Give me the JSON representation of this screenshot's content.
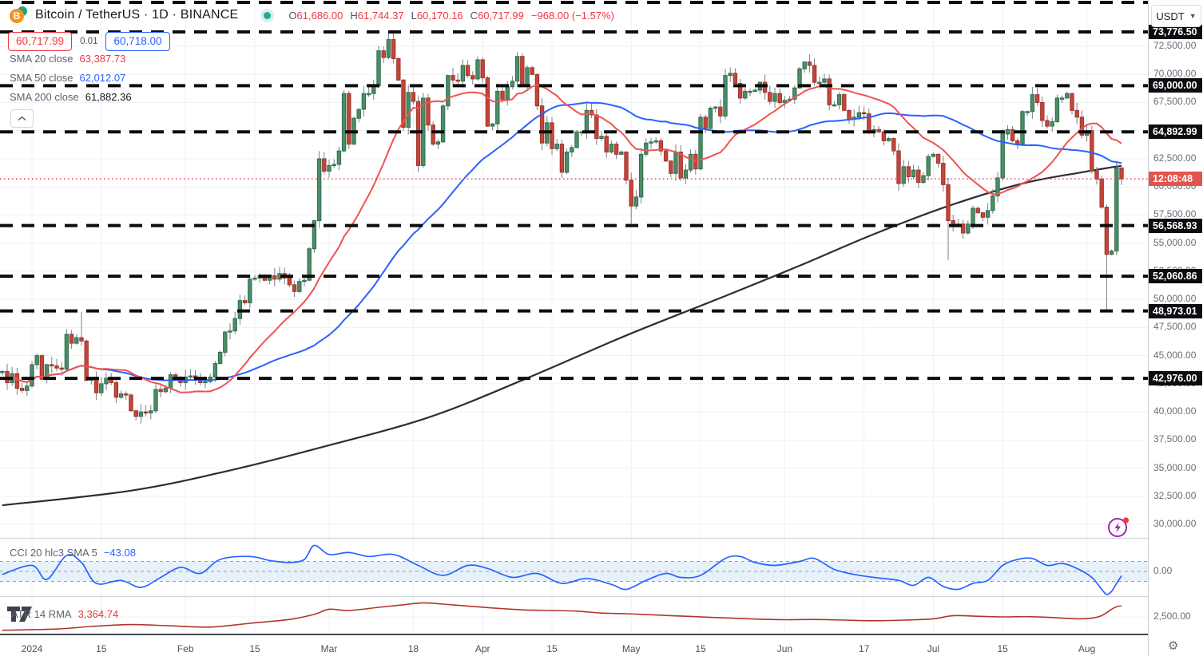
{
  "colors": {
    "up_fill": "#4c8c67",
    "up_border": "#2f6e4f",
    "down_fill": "#c4453a",
    "down_border": "#9e342c",
    "wick": "#7b7f88",
    "sma20": "#ef5350",
    "sma50": "#2962ff",
    "sma200": "#2a2e39",
    "level": "#0c0c0c",
    "current_price_line": "#f23645",
    "cci_line": "#2962ff",
    "cci_band_fill": "#e7f1fa",
    "cci_band_edge": "#9a9eab",
    "atr_line": "#b2352b",
    "grid": "#eef1f6",
    "separator": "#d6d9e0",
    "badge_bg": "#0c0d10",
    "timer_bg": "#e0564f",
    "accent_purple": "#9c27b0"
  },
  "header": {
    "symbol_title": "Bitcoin / TetherUS · 1D · BINANCE",
    "market_status": "open",
    "ohlc": {
      "o_label": "O",
      "o_value": "61,686.00",
      "h_label": "H",
      "h_value": "61,744.37",
      "l_label": "L",
      "l_value": "60,170.16",
      "c_label": "C",
      "c_value": "60,717.99",
      "change": "−968.00 (−1.57%)"
    },
    "sell_price": "60,717.99",
    "spread": "0.01",
    "buy_price": "60,718.00",
    "indicators": [
      {
        "label": "SMA 20 close",
        "value": "63,387.73",
        "color": "#f23645"
      },
      {
        "label": "SMA 50 close",
        "value": "62,012.07",
        "color": "#2962ff"
      },
      {
        "label": "SMA 200 close",
        "value": "61,882.36",
        "color": "#131722"
      }
    ]
  },
  "toolbar": {
    "currency_label": "USDT"
  },
  "panes": {
    "cci": {
      "label": "CCI 20 hlc3 SMA 5",
      "value": "−43.08",
      "axis_tick_label": "0.00"
    },
    "atr": {
      "label": "ATR 14 RMA",
      "value": "3,364.74",
      "axis_tick_label": "2,500.00"
    }
  },
  "axis": {
    "price_ticks": [
      72500,
      70000,
      67500,
      65000,
      62500,
      60000,
      57500,
      55000,
      52500,
      50000,
      47500,
      45000,
      42500,
      40000,
      37500,
      35000,
      32500,
      30000
    ],
    "time_ticks": [
      {
        "label": "2024",
        "day": 0
      },
      {
        "label": "15",
        "day": 14
      },
      {
        "label": "Feb",
        "day": 31
      },
      {
        "label": "15",
        "day": 45
      },
      {
        "label": "Mar",
        "day": 60
      },
      {
        "label": "18",
        "day": 77
      },
      {
        "label": "Apr",
        "day": 91
      },
      {
        "label": "15",
        "day": 105
      },
      {
        "label": "May",
        "day": 121
      },
      {
        "label": "15",
        "day": 135
      },
      {
        "label": "Jun",
        "day": 152
      },
      {
        "label": "17",
        "day": 168
      },
      {
        "label": "Jul",
        "day": 182
      },
      {
        "label": "15",
        "day": 196
      },
      {
        "label": "Aug",
        "day": 213
      }
    ],
    "countdown": "12:08:48"
  },
  "chart_data": {
    "type": "candlestick",
    "symbol": "BTCUSDT",
    "exchange": "BINANCE",
    "interval": "1D",
    "quote_currency": "USDT",
    "date_start": "2023-12-26",
    "date_end": "2024-08-08",
    "last_bar": {
      "open": 61686.0,
      "high": 61744.37,
      "low": 60170.16,
      "close": 60717.99,
      "change": -968.0,
      "change_pct": -1.57
    },
    "moving_averages": {
      "sma20_close": 63387.73,
      "sma50_close": 62012.07,
      "sma200_close": 61882.36
    },
    "current_price": 60717.99,
    "ylim": [
      29000,
      76500
    ],
    "grid": true,
    "key_levels": [
      {
        "price": 76400,
        "label": ""
      },
      {
        "price": 73776.5,
        "label": "73,776.50"
      },
      {
        "price": 69000,
        "label": "69,000.00"
      },
      {
        "price": 64892.99,
        "label": "64,892.99"
      },
      {
        "price": 56568.93,
        "label": "56,568.93"
      },
      {
        "price": 52060.86,
        "label": "52,060.86"
      },
      {
        "price": 48973.01,
        "label": "48,973.01"
      },
      {
        "price": 42976.0,
        "label": "42,976.00"
      }
    ],
    "closes": [
      43600,
      42600,
      43400,
      42100,
      41900,
      42300,
      44200,
      45000,
      42900,
      44200,
      44100,
      43900,
      43800,
      46900,
      46100,
      46600,
      46300,
      42800,
      42900,
      41700,
      42500,
      43000,
      42600,
      41300,
      41600,
      41500,
      40100,
      39600,
      40000,
      39900,
      40100,
      42000,
      41800,
      42100,
      43300,
      43100,
      42600,
      43100,
      43200,
      43000,
      42600,
      42700,
      43100,
      44300,
      45300,
      47100,
      47200,
      48300,
      49900,
      49700,
      51800,
      51900,
      52100,
      51700,
      52100,
      51800,
      52300,
      51900,
      51300,
      50700,
      51600,
      51700,
      54500,
      57000,
      62500,
      61400,
      61900,
      62000,
      63200,
      68300,
      63800,
      66100,
      66900,
      68300,
      68300,
      69000,
      72100,
      71500,
      73100,
      71400,
      69500,
      65300,
      68400,
      67600,
      61900,
      67900,
      65500,
      63800,
      64000,
      67200,
      69900,
      69500,
      69400,
      70800,
      69900,
      69600,
      71300,
      69700,
      65400,
      65600,
      68500,
      67800,
      68900,
      69400,
      71600,
      69100,
      70600,
      70000,
      67200,
      63900,
      65700,
      63400,
      63800,
      61300,
      63100,
      63500,
      64900,
      64900,
      66800,
      66400,
      64300,
      64500,
      63100,
      63800,
      62900,
      63100,
      60600,
      58300,
      59100,
      62900,
      63900,
      64000,
      64100,
      63200,
      62300,
      61200,
      63100,
      60800,
      61500,
      62900,
      61600,
      66200,
      65200,
      67000,
      67100,
      66300,
      69900,
      70100,
      69200,
      67900,
      68500,
      68500,
      68600,
      69300,
      68400,
      67600,
      68300,
      67500,
      67700,
      67800,
      68800,
      70500,
      71100,
      70800,
      69300,
      69300,
      69600,
      67300,
      67300,
      68200,
      66800,
      66000,
      66200,
      66600,
      66500,
      64900,
      65100,
      64900,
      64100,
      64300,
      63200,
      60300,
      61800,
      60900,
      61500,
      60400,
      61000,
      62700,
      62900,
      62100,
      60200,
      57000,
      56600,
      56700,
      55900,
      56700,
      58100,
      57700,
      57300,
      57900,
      59200,
      60800,
      64700,
      65100,
      64100,
      63800,
      66700,
      66700,
      68200,
      67500,
      65900,
      65400,
      65800,
      67900,
      67900,
      68300,
      66800,
      66200,
      64600,
      65000,
      61400,
      60700,
      58200,
      54000,
      54300,
      61686,
      60717.99
    ],
    "candle_overrides": {
      "16": {
        "high": 48900
      },
      "78": {
        "high": 73680
      },
      "79": {
        "high": 73776.5
      },
      "127": {
        "low": 56500
      },
      "191": {
        "low": 53500
      },
      "223": {
        "low": 48973.01
      },
      "225": {
        "high": 62244
      },
      "226": {
        "open": 61686.0,
        "high": 61744.37,
        "low": 60170.16,
        "close": 60717.99
      }
    },
    "sma200_anchors": [
      [
        -6,
        31700
      ],
      [
        20,
        33000
      ],
      [
        40,
        34800
      ],
      [
        58,
        36800
      ],
      [
        80,
        39500
      ],
      [
        100,
        43000
      ],
      [
        120,
        46800
      ],
      [
        140,
        50300
      ],
      [
        155,
        53000
      ],
      [
        170,
        55800
      ],
      [
        185,
        58300
      ],
      [
        200,
        60300
      ],
      [
        212,
        61300
      ],
      [
        220,
        61882
      ]
    ],
    "cci": {
      "band": [
        -100,
        100
      ],
      "last": -43.08,
      "anchors": [
        [
          -6,
          -30
        ],
        [
          0,
          60
        ],
        [
          3,
          -80
        ],
        [
          7,
          160
        ],
        [
          10,
          90
        ],
        [
          13,
          -120
        ],
        [
          18,
          -90
        ],
        [
          22,
          -160
        ],
        [
          26,
          -60
        ],
        [
          30,
          40
        ],
        [
          34,
          -20
        ],
        [
          38,
          120
        ],
        [
          44,
          150
        ],
        [
          48,
          110
        ],
        [
          52,
          90
        ],
        [
          55,
          120
        ],
        [
          57,
          260
        ],
        [
          60,
          170
        ],
        [
          64,
          190
        ],
        [
          68,
          150
        ],
        [
          73,
          170
        ],
        [
          78,
          60
        ],
        [
          83,
          -40
        ],
        [
          88,
          60
        ],
        [
          92,
          30
        ],
        [
          97,
          -60
        ],
        [
          102,
          -20
        ],
        [
          107,
          -120
        ],
        [
          112,
          -70
        ],
        [
          117,
          -130
        ],
        [
          120,
          -180
        ],
        [
          124,
          -90
        ],
        [
          128,
          -20
        ],
        [
          131,
          -60
        ],
        [
          135,
          -40
        ],
        [
          140,
          130
        ],
        [
          143,
          150
        ],
        [
          146,
          90
        ],
        [
          150,
          60
        ],
        [
          155,
          100
        ],
        [
          158,
          130
        ],
        [
          162,
          20
        ],
        [
          166,
          -30
        ],
        [
          170,
          -60
        ],
        [
          175,
          -90
        ],
        [
          178,
          -140
        ],
        [
          181,
          -60
        ],
        [
          184,
          -150
        ],
        [
          187,
          -180
        ],
        [
          190,
          -120
        ],
        [
          193,
          -90
        ],
        [
          196,
          60
        ],
        [
          199,
          120
        ],
        [
          202,
          130
        ],
        [
          205,
          60
        ],
        [
          208,
          80
        ],
        [
          211,
          30
        ],
        [
          214,
          -60
        ],
        [
          216,
          -180
        ],
        [
          217,
          -230
        ],
        [
          218,
          -200
        ],
        [
          219,
          -120
        ],
        [
          220,
          -43.08
        ]
      ]
    },
    "atr": {
      "last": 3364.74,
      "anchors": [
        [
          -6,
          1450
        ],
        [
          5,
          1550
        ],
        [
          12,
          1750
        ],
        [
          20,
          1900
        ],
        [
          28,
          1800
        ],
        [
          36,
          1700
        ],
        [
          44,
          2000
        ],
        [
          52,
          2300
        ],
        [
          57,
          2700
        ],
        [
          60,
          3100
        ],
        [
          64,
          3000
        ],
        [
          70,
          3250
        ],
        [
          75,
          3450
        ],
        [
          79,
          3600
        ],
        [
          83,
          3500
        ],
        [
          88,
          3350
        ],
        [
          93,
          3200
        ],
        [
          99,
          3050
        ],
        [
          105,
          3000
        ],
        [
          110,
          2950
        ],
        [
          115,
          2800
        ],
        [
          120,
          2750
        ],
        [
          126,
          2650
        ],
        [
          132,
          2550
        ],
        [
          138,
          2450
        ],
        [
          145,
          2350
        ],
        [
          152,
          2280
        ],
        [
          158,
          2300
        ],
        [
          164,
          2250
        ],
        [
          170,
          2200
        ],
        [
          176,
          2250
        ],
        [
          182,
          2350
        ],
        [
          186,
          2600
        ],
        [
          191,
          2550
        ],
        [
          196,
          2500
        ],
        [
          201,
          2520
        ],
        [
          206,
          2450
        ],
        [
          211,
          2350
        ],
        [
          214,
          2400
        ],
        [
          216,
          2600
        ],
        [
          218,
          3100
        ],
        [
          219,
          3300
        ],
        [
          220,
          3364
        ]
      ]
    }
  }
}
